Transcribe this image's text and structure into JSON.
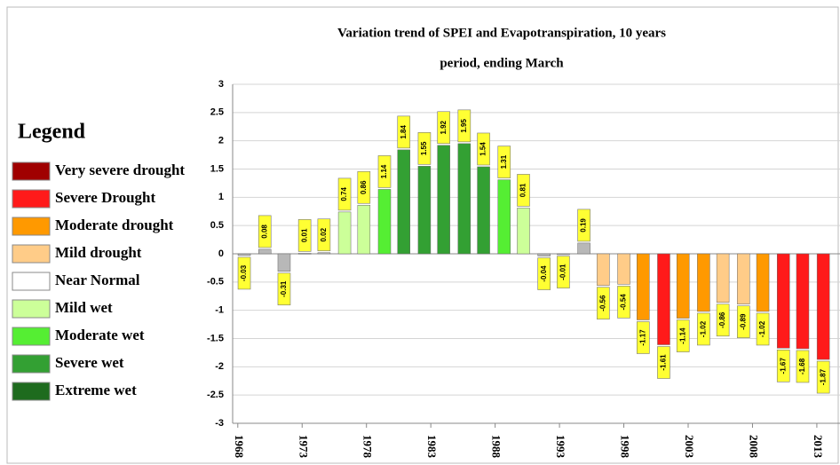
{
  "chart_data": {
    "type": "bar",
    "title_lines": [
      "Variation trend of SPEI and Evapotranspiration, 10 years",
      "period, ending March"
    ],
    "legend_title": "Legend",
    "legend": [
      {
        "name": "Very severe drought",
        "color": "#a00000"
      },
      {
        "name": "Severe Drought",
        "color": "#ff1a1a"
      },
      {
        "name": "Moderate drought",
        "color": "#ff9900"
      },
      {
        "name": "Mild drought",
        "color": "#ffcc88"
      },
      {
        "name": "Near Normal",
        "color": "#ffffff"
      },
      {
        "name": "Mild wet",
        "color": "#ccff99"
      },
      {
        "name": "Moderate wet",
        "color": "#55ee33"
      },
      {
        "name": "Severe wet",
        "color": "#33a033"
      },
      {
        "name": "Extreme wet",
        "color": "#1e6b1e"
      }
    ],
    "x": [
      1968.5,
      1970.1,
      1971.6,
      1973.2,
      1974.7,
      1976.3,
      1977.8,
      1979.4,
      1980.9,
      1982.5,
      1984.0,
      1985.6,
      1987.1,
      1988.7,
      1990.2,
      1991.8,
      1993.3,
      1994.9,
      1996.4,
      1998.0,
      1999.5,
      2001.1,
      2002.6,
      2004.2,
      2005.7,
      2007.3,
      2008.8,
      2010.4,
      2011.9,
      2013.5
    ],
    "values": [
      -0.03,
      0.08,
      -0.31,
      0.01,
      0.02,
      0.74,
      0.86,
      1.14,
      1.84,
      1.55,
      1.92,
      1.95,
      1.54,
      1.31,
      0.81,
      -0.04,
      -0.01,
      0.19,
      -0.56,
      -0.54,
      -1.17,
      -1.61,
      -1.14,
      -1.02,
      -0.86,
      -0.89,
      -1.02,
      -1.67,
      -1.68,
      -1.87
    ],
    "colors": [
      "#b8b8b8",
      "#b8b8b8",
      "#b8b8b8",
      "#b8b8b8",
      "#b8b8b8",
      "#ccff99",
      "#ccff99",
      "#55ee33",
      "#33a033",
      "#33a033",
      "#33a033",
      "#33a033",
      "#33a033",
      "#55ee33",
      "#ccff99",
      "#b8b8b8",
      "#b8b8b8",
      "#b8b8b8",
      "#ffcc88",
      "#ffcc88",
      "#ff9900",
      "#ff1a1a",
      "#ff9900",
      "#ff9900",
      "#ffcc88",
      "#ffcc88",
      "#ff9900",
      "#ff1a1a",
      "#ff1a1a",
      "#ff1a1a"
    ],
    "xlim": [
      1967.6,
      2014.8
    ],
    "xticks": [
      1968,
      1973,
      1978,
      1983,
      1988,
      1993,
      1998,
      2003,
      2008,
      2013
    ],
    "ylim": [
      -3,
      3
    ],
    "yticks": [
      -3,
      -2.5,
      -2,
      -1.5,
      -1,
      -0.5,
      0,
      0.5,
      1,
      1.5,
      2,
      2.5,
      3
    ],
    "grid": true
  }
}
